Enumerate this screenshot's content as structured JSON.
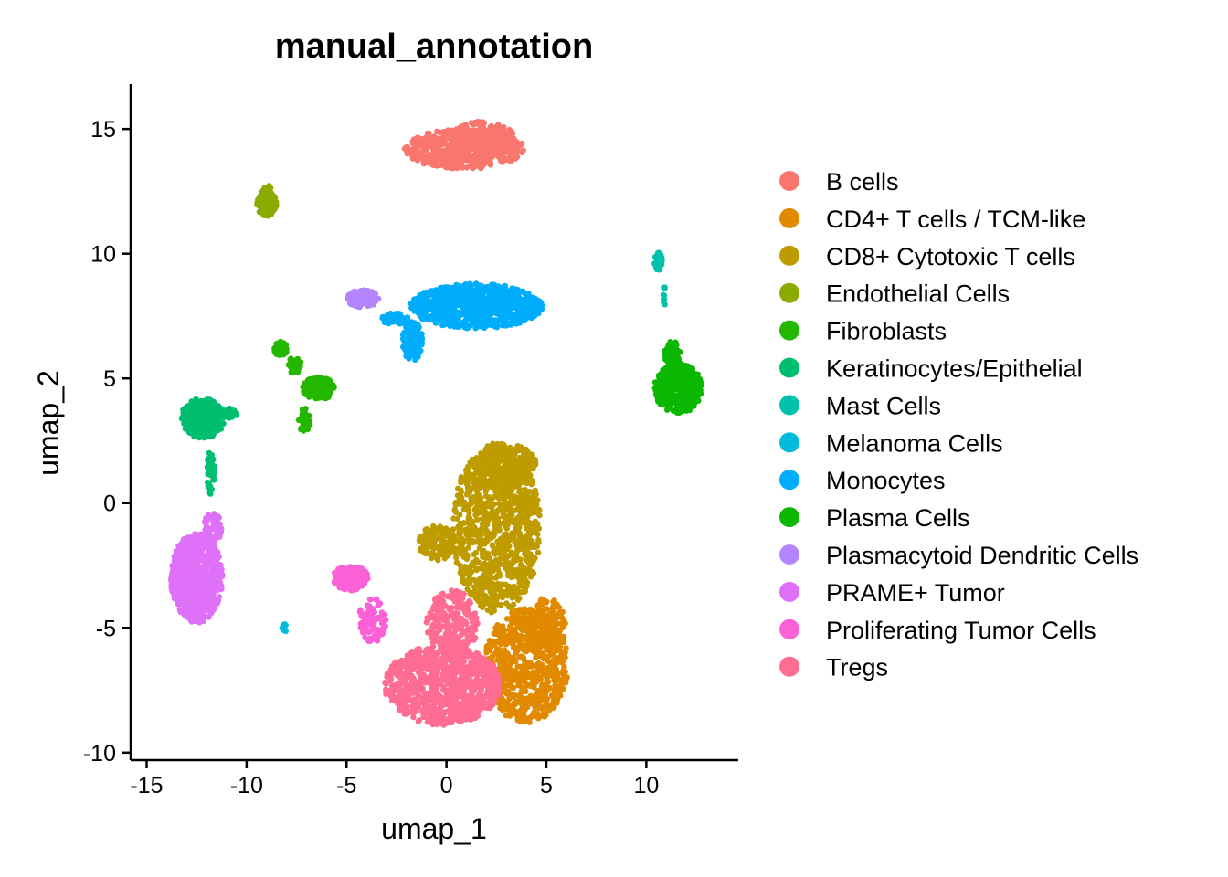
{
  "chart_data": {
    "type": "scatter",
    "title": "manual_annotation",
    "xlabel": "umap_1",
    "ylabel": "umap_2",
    "xlim": [
      -15.8,
      14.6
    ],
    "ylim": [
      -10.3,
      16.8
    ],
    "xticks": [
      -15,
      -10,
      -5,
      0,
      5,
      10
    ],
    "yticks": [
      -10,
      -5,
      0,
      5,
      10,
      15
    ],
    "grid": false,
    "legend_position": "right",
    "legend_title": "",
    "series": [
      {
        "name": "B cells",
        "color": "#F8766D",
        "clusters": [
          {
            "cx": 0.9,
            "cy": 14.2,
            "rx": 3.0,
            "ry": 0.8,
            "n": 520
          },
          {
            "cx": 1.8,
            "cy": 14.7,
            "rx": 1.6,
            "ry": 0.6,
            "n": 200
          }
        ]
      },
      {
        "name": "CD4+ T cells / TCM-like",
        "color": "#E18A00",
        "clusters": [
          {
            "cx": 4.0,
            "cy": -6.5,
            "rx": 2.1,
            "ry": 2.3,
            "n": 700
          },
          {
            "cx": 5.0,
            "cy": -5.0,
            "rx": 1.0,
            "ry": 1.2,
            "n": 150
          }
        ]
      },
      {
        "name": "CD8+ Cytotoxic T cells",
        "color": "#BE9C00",
        "clusters": [
          {
            "cx": 2.5,
            "cy": -1.0,
            "rx": 2.2,
            "ry": 3.4,
            "n": 1000
          },
          {
            "cx": 3.0,
            "cy": 1.5,
            "rx": 1.5,
            "ry": 0.9,
            "n": 200
          },
          {
            "cx": -0.5,
            "cy": -1.6,
            "rx": 0.9,
            "ry": 0.7,
            "n": 120
          }
        ]
      },
      {
        "name": "Endothelial Cells",
        "color": "#8CAB00",
        "clusters": [
          {
            "cx": -9.0,
            "cy": 12.0,
            "rx": 0.5,
            "ry": 0.5,
            "n": 120
          },
          {
            "cx": -9.0,
            "cy": 12.5,
            "rx": 0.25,
            "ry": 0.3,
            "n": 30
          }
        ]
      },
      {
        "name": "Fibroblasts",
        "color": "#24B700",
        "clusters": [
          {
            "cx": -6.4,
            "cy": 4.6,
            "rx": 0.8,
            "ry": 0.45,
            "n": 150
          },
          {
            "cx": -8.3,
            "cy": 6.2,
            "rx": 0.35,
            "ry": 0.3,
            "n": 50
          },
          {
            "cx": -7.6,
            "cy": 5.5,
            "rx": 0.35,
            "ry": 0.35,
            "n": 30
          },
          {
            "cx": -7.1,
            "cy": 3.3,
            "rx": 0.3,
            "ry": 0.5,
            "n": 40
          }
        ]
      },
      {
        "name": "Keratinocytes/Epithelial",
        "color": "#00BE70",
        "clusters": [
          {
            "cx": -12.2,
            "cy": 3.4,
            "rx": 1.1,
            "ry": 0.8,
            "n": 350
          },
          {
            "cx": -10.9,
            "cy": 3.6,
            "rx": 0.5,
            "ry": 0.2,
            "n": 50
          },
          {
            "cx": -11.8,
            "cy": 1.2,
            "rx": 0.2,
            "ry": 0.9,
            "n": 40
          }
        ]
      },
      {
        "name": "Mast Cells",
        "color": "#00C1AB",
        "clusters": [
          {
            "cx": 10.6,
            "cy": 9.7,
            "rx": 0.2,
            "ry": 0.4,
            "n": 35
          },
          {
            "cx": 10.9,
            "cy": 8.3,
            "rx": 0.06,
            "ry": 0.4,
            "n": 10
          }
        ]
      },
      {
        "name": "Melanoma Cells",
        "color": "#00BBDA",
        "clusters": [
          {
            "cx": -8.1,
            "cy": -5.0,
            "rx": 0.15,
            "ry": 0.15,
            "n": 14
          }
        ]
      },
      {
        "name": "Monocytes",
        "color": "#00ACFC",
        "clusters": [
          {
            "cx": 1.5,
            "cy": 7.9,
            "rx": 3.3,
            "ry": 0.9,
            "n": 800
          },
          {
            "cx": -1.7,
            "cy": 6.5,
            "rx": 0.5,
            "ry": 0.8,
            "n": 120
          },
          {
            "cx": -2.6,
            "cy": 7.4,
            "rx": 0.7,
            "ry": 0.25,
            "n": 50
          }
        ]
      },
      {
        "name": "Plasma Cells",
        "color": "#0CB702",
        "clusters": [
          {
            "cx": 11.6,
            "cy": 4.6,
            "rx": 1.2,
            "ry": 1.0,
            "n": 450
          },
          {
            "cx": 11.3,
            "cy": 6.0,
            "rx": 0.4,
            "ry": 0.5,
            "n": 60
          }
        ]
      },
      {
        "name": "Plasmacytoid Dendritic Cells",
        "color": "#B385FF",
        "clusters": [
          {
            "cx": -4.2,
            "cy": 8.2,
            "rx": 0.8,
            "ry": 0.35,
            "n": 120
          }
        ]
      },
      {
        "name": "PRAME+ Tumor",
        "color": "#DF70F8",
        "clusters": [
          {
            "cx": -12.5,
            "cy": -3.0,
            "rx": 1.3,
            "ry": 1.8,
            "n": 700
          },
          {
            "cx": -11.7,
            "cy": -1.0,
            "rx": 0.45,
            "ry": 0.6,
            "n": 60
          }
        ]
      },
      {
        "name": "Proliferating Tumor Cells",
        "color": "#FB61D7",
        "clusters": [
          {
            "cx": -4.8,
            "cy": -3.0,
            "rx": 0.9,
            "ry": 0.5,
            "n": 150
          },
          {
            "cx": -3.7,
            "cy": -4.7,
            "rx": 0.7,
            "ry": 0.9,
            "n": 90
          }
        ]
      },
      {
        "name": "Tregs",
        "color": "#FF6C91",
        "clusters": [
          {
            "cx": -0.2,
            "cy": -7.3,
            "rx": 2.9,
            "ry": 1.6,
            "n": 900
          },
          {
            "cx": 0.3,
            "cy": -4.8,
            "rx": 1.3,
            "ry": 1.3,
            "n": 250
          }
        ]
      }
    ]
  }
}
